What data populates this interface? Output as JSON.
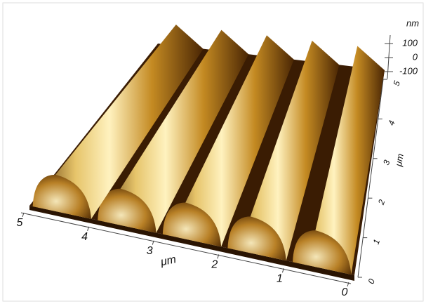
{
  "chart_data": {
    "type": "surface3d",
    "x_label": "μm",
    "y_label": "μm",
    "z_label": "nm",
    "xlim": [
      0,
      5
    ],
    "xticks": [
      0,
      1,
      2,
      3,
      4,
      5
    ],
    "ylim": [
      0,
      5
    ],
    "yticks": [
      0,
      1,
      2,
      3,
      4,
      5
    ],
    "zlim": [
      -100,
      100
    ],
    "zticks": [
      -100,
      0,
      100
    ]
  }
}
